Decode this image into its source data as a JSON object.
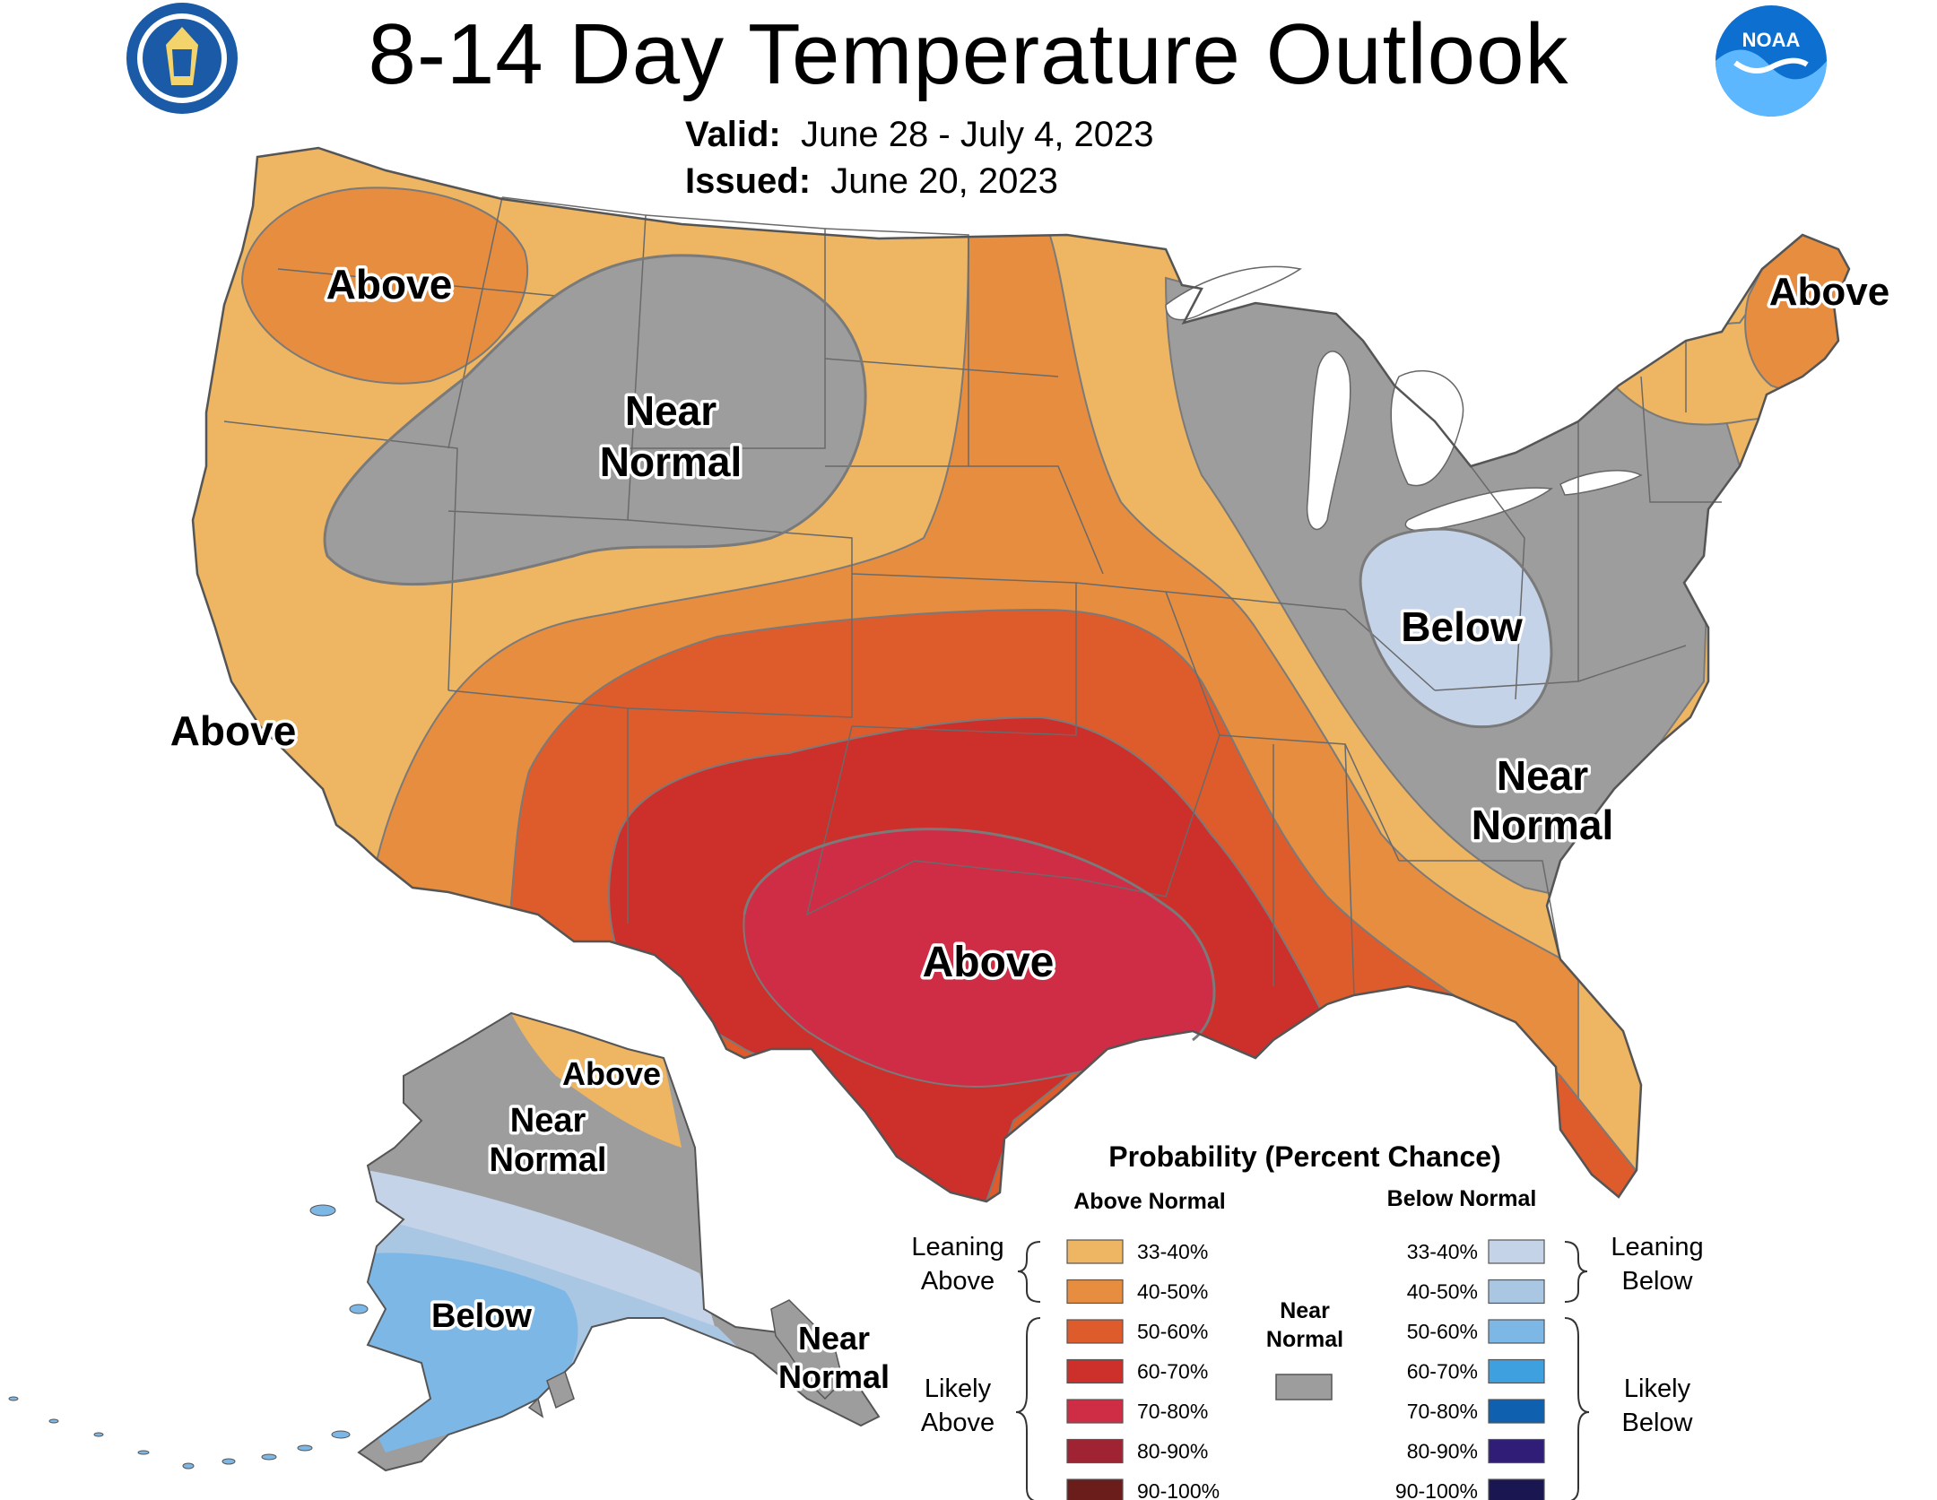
{
  "title": "8-14 Day Temperature Outlook",
  "valid_label": "Valid:",
  "valid_value": "June 28 - July 4, 2023",
  "issued_label": "Issued:",
  "issued_value": "June 20, 2023",
  "logos": {
    "left": "department-of-commerce-seal",
    "right": "noaa-logo",
    "noaa_text": "NOAA"
  },
  "colors": {
    "ocean": "#ffffff",
    "near_normal": "#9d9d9d",
    "above_33_40": "#eeb562",
    "above_40_50": "#e68d3f",
    "above_50_60": "#de5b2c",
    "above_60_70": "#cd2f2a",
    "above_70_80": "#cf2d46",
    "above_80_90": "#9f2333",
    "above_90_100": "#6a1d1b",
    "below_33_40": "#c5d3e9",
    "below_40_50": "#a9c6e3",
    "below_50_60": "#7db7e6",
    "below_60_70": "#3fa0e0",
    "below_70_80": "#1060b0",
    "below_80_90": "#2f1d77",
    "below_90_100": "#191652",
    "border": "#555555"
  },
  "regions": {
    "pacific_nw": "Above",
    "mountain_west_1": "Near",
    "mountain_west_2": "Normal",
    "california": "Above",
    "texas": "Above",
    "ohio_valley": "Below",
    "southeast_1": "Near",
    "southeast_2": "Normal",
    "new_england": "Above",
    "alaska_north": "Above",
    "alaska_central_1": "Near",
    "alaska_central_2": "Normal",
    "alaska_south": "Below",
    "alaska_panhandle_1": "Near",
    "alaska_panhandle_2": "Normal"
  },
  "legend": {
    "title": "Probability (Percent Chance)",
    "above_header": "Above Normal",
    "below_header": "Below Normal",
    "near_header_1": "Near",
    "near_header_2": "Normal",
    "leaning_above_1": "Leaning",
    "leaning_above_2": "Above",
    "likely_above_1": "Likely",
    "likely_above_2": "Above",
    "leaning_below_1": "Leaning",
    "leaning_below_2": "Below",
    "likely_below_1": "Likely",
    "likely_below_2": "Below",
    "above_items": [
      "33-40%",
      "40-50%",
      "50-60%",
      "60-70%",
      "70-80%",
      "80-90%",
      "90-100%"
    ],
    "below_items": [
      "33-40%",
      "40-50%",
      "50-60%",
      "60-70%",
      "70-80%",
      "80-90%",
      "90-100%"
    ]
  }
}
